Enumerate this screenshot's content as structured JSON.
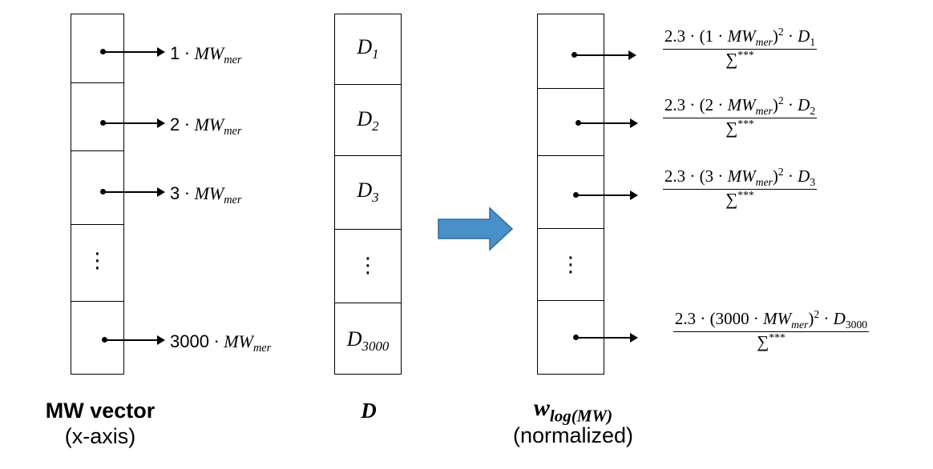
{
  "mw_column": {
    "labels": [
      {
        "num": "1",
        "var": "MW",
        "sub": "mer"
      },
      {
        "num": "2",
        "var": "MW",
        "sub": "mer"
      },
      {
        "num": "3",
        "var": "MW",
        "sub": "mer"
      },
      {
        "num": "3000",
        "var": "MW",
        "sub": "mer"
      }
    ],
    "dots": "⋮",
    "title": "MW vector",
    "subtitle": "(x-axis)"
  },
  "d_column": {
    "cells": [
      {
        "var": "D",
        "sub": "1"
      },
      {
        "var": "D",
        "sub": "2"
      },
      {
        "var": "D",
        "sub": "3"
      },
      {
        "var": "D",
        "sub": "3000"
      }
    ],
    "dots": "⋮",
    "title": "D"
  },
  "w_column": {
    "formulas": [
      {
        "coef": "2.3",
        "n": "1",
        "var": "MW",
        "sub": "mer",
        "exp": "2",
        "dvar": "D",
        "dsub": "1",
        "den": "∑",
        "densup": "***"
      },
      {
        "coef": "2.3",
        "n": "2",
        "var": "MW",
        "sub": "mer",
        "exp": "2",
        "dvar": "D",
        "dsub": "2",
        "den": "∑",
        "densup": "***"
      },
      {
        "coef": "2.3",
        "n": "3",
        "var": "MW",
        "sub": "mer",
        "exp": "2",
        "dvar": "D",
        "dsub": "3",
        "den": "∑",
        "densup": "***"
      },
      {
        "coef": "2.3",
        "n": "3000",
        "var": "MW",
        "sub": "mer",
        "exp": "2",
        "dvar": "D",
        "dsub": "3000",
        "den": "∑",
        "densup": "***"
      }
    ],
    "dots": "⋮",
    "title_var": "w",
    "title_sub": "log(MW)",
    "subtitle": "(normalized)"
  },
  "colors": {
    "arrow_fill": "#4a90c8",
    "arrow_stroke": "#2e6b9e"
  }
}
